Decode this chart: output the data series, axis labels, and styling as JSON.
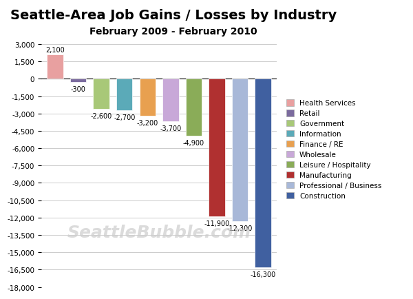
{
  "title": "Seattle-Area Job Gains / Losses by Industry",
  "subtitle": "February 2009 - February 2010",
  "categories": [
    "Health Services",
    "Retail",
    "Government",
    "Information",
    "Finance / RE",
    "Wholesale",
    "Leisure / Hospitality",
    "Manufacturing",
    "Professional / Business",
    "Construction"
  ],
  "values": [
    2100,
    -300,
    -2600,
    -2700,
    -3200,
    -3700,
    -4900,
    -11900,
    -12300,
    -16300
  ],
  "bar_colors": [
    "#e8a0a0",
    "#7b6b9e",
    "#a8c878",
    "#5baab8",
    "#e8a050",
    "#c8a8d8",
    "#8aac58",
    "#b03030",
    "#a8b8d8",
    "#4060a0"
  ],
  "label_values": [
    "2,100",
    "-300",
    "-2,600",
    "-2,700",
    "-3,200",
    "-3,700",
    "-4,900",
    "-11,900",
    "-12,300",
    "-16,300"
  ],
  "ylim": [
    -18000,
    3500
  ],
  "yticks": [
    3000,
    1500,
    0,
    -1500,
    -3000,
    -4500,
    -6000,
    -7500,
    -9000,
    -10500,
    -12000,
    -13500,
    -15000,
    -16500,
    -18000
  ],
  "ytick_labels": [
    "3,000",
    "1,500",
    "0",
    "-1,500",
    "-3,000",
    "-4,500",
    "-6,000",
    "-7,500",
    "-9,000",
    "-10,500",
    "-12,000",
    "-13,500",
    "-15,000",
    "-16,500",
    "-18,000"
  ],
  "watermark": "SeattleBubble.com",
  "background_color": "#ffffff",
  "grid_color": "#cccccc",
  "title_fontsize": 14,
  "subtitle_fontsize": 10
}
